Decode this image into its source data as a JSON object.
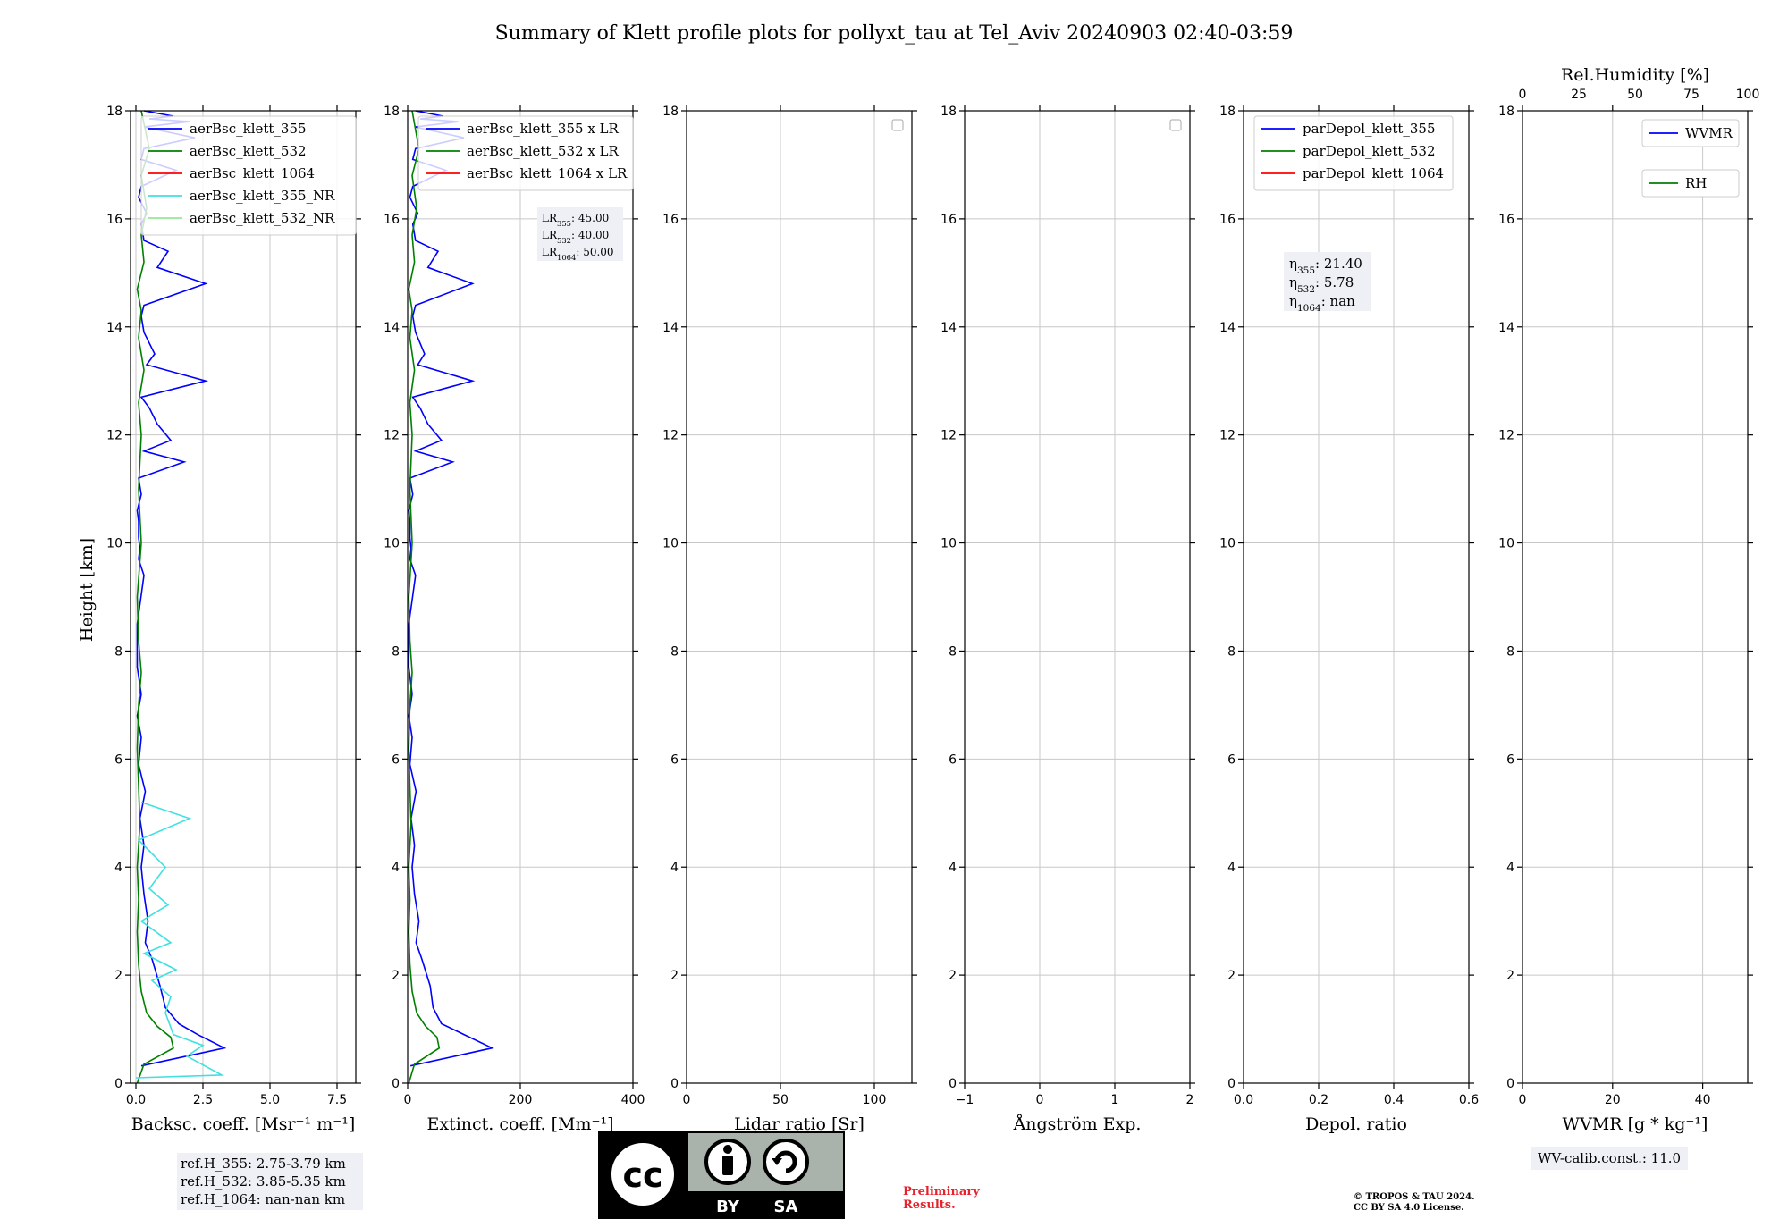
{
  "title": "Summary of Klett profile plots for pollyxt_tau at Tel_Aviv 20240903 02:40-03:59",
  "ylabel": "Height [km]",
  "colors": {
    "c355": "#0000ff",
    "c532": "#008000",
    "c1064": "#ff0000",
    "c355nr": "#40e0e0",
    "c532nr": "#98e69a",
    "grid": "#c8c8c8"
  },
  "chart_data": [
    {
      "id": "backscatter",
      "type": "line",
      "xlabel": "Backsc. coeff. [Msr⁻¹ m⁻¹]",
      "xlim": [
        -0.2,
        8.2
      ],
      "ylim": [
        0,
        18
      ],
      "xticks": [
        "0.0",
        "2.5",
        "5.0",
        "7.5"
      ],
      "xtick_values": [
        0,
        2.5,
        5,
        7.5
      ],
      "yticks": [
        "0",
        "2",
        "4",
        "6",
        "8",
        "10",
        "12",
        "14",
        "16",
        "18"
      ],
      "grid": true,
      "legend": "upper-center",
      "series": [
        {
          "name": "aerBsc_klett_355",
          "color": "#0000ff",
          "x": [
            0.2,
            3.3,
            2.3,
            1.6,
            1.1,
            0.9,
            0.6,
            0.35,
            0.45,
            0.3,
            0.2,
            0.3,
            0.15,
            0.35,
            0.1,
            0.2,
            0.05,
            0.2,
            0.05,
            0.05,
            0.3,
            0.1,
            0.15,
            0.1,
            0.1,
            0.05,
            0.2,
            0.1,
            1.8,
            0.3,
            1.3,
            0.8,
            0.5,
            0.2,
            2.6,
            0.4,
            0.7,
            0.3,
            0.2,
            0.3,
            2.6,
            0.8,
            1.2,
            0.3,
            0.2,
            0.4,
            0.1,
            0.2,
            1.5,
            0.2,
            0.3,
            2.2,
            0.3,
            2.0,
            0.5,
            1.4,
            0.3
          ],
          "y": [
            0.32,
            0.65,
            0.9,
            1.1,
            1.4,
            1.8,
            2.3,
            2.6,
            3.0,
            3.5,
            4.0,
            4.4,
            4.9,
            5.4,
            5.9,
            6.4,
            6.8,
            7.2,
            7.7,
            8.5,
            9.4,
            9.7,
            9.9,
            10.1,
            10.4,
            10.6,
            10.9,
            11.2,
            11.5,
            11.7,
            11.9,
            12.2,
            12.5,
            12.7,
            13.0,
            13.3,
            13.5,
            13.9,
            14.2,
            14.4,
            14.8,
            15.1,
            15.4,
            15.6,
            15.9,
            16.1,
            16.4,
            16.6,
            16.9,
            17.1,
            17.3,
            17.5,
            17.7,
            17.8,
            17.85,
            17.9,
            18.0
          ]
        },
        {
          "name": "aerBsc_klett_532",
          "color": "#008000",
          "x": [
            0.05,
            0.3,
            1.4,
            1.3,
            0.8,
            0.4,
            0.2,
            0.1,
            0.05,
            0.1,
            0.05,
            0.15,
            0.1,
            0.05,
            0.1,
            0.2,
            0.1,
            0.05,
            0.2,
            0.1,
            0.2,
            0.1,
            0.3,
            0.1,
            0.2,
            0.05,
            0.3,
            0.2,
            0.4,
            0.2,
            0.5,
            0.2
          ],
          "y": [
            0.0,
            0.35,
            0.65,
            0.85,
            1.05,
            1.3,
            1.7,
            2.2,
            2.8,
            3.4,
            4.0,
            4.8,
            5.5,
            6.2,
            7.0,
            7.6,
            8.2,
            9.0,
            10.0,
            11.0,
            12.0,
            12.6,
            13.2,
            13.8,
            14.3,
            14.7,
            15.2,
            15.7,
            16.2,
            16.8,
            17.3,
            18.0
          ]
        },
        {
          "name": "aerBsc_klett_1064",
          "color": "#ff0000",
          "x": [],
          "y": []
        },
        {
          "name": "aerBsc_klett_355_NR",
          "color": "#40e0e0",
          "x": [
            0.0,
            3.2,
            1.9,
            2.5,
            1.4,
            1.1,
            1.3,
            0.6,
            1.5,
            0.3,
            1.3,
            0.2,
            1.2,
            0.5,
            1.1,
            0.1,
            2.0,
            0.2
          ],
          "y": [
            0.1,
            0.15,
            0.5,
            0.7,
            0.9,
            1.3,
            1.6,
            1.9,
            2.1,
            2.4,
            2.6,
            3.0,
            3.3,
            3.6,
            4.0,
            4.5,
            4.9,
            5.2
          ]
        },
        {
          "name": "aerBsc_klett_532_NR",
          "color": "#98e69a",
          "x": [],
          "y": []
        }
      ],
      "info_text": [
        "ref.H_355: 2.75-3.79 km",
        "ref.H_532: 3.85-5.35 km",
        "ref.H_1064: nan-nan km"
      ]
    },
    {
      "id": "extinction",
      "type": "line",
      "xlabel": "Extinct. coeff. [Mm⁻¹]",
      "xlim": [
        0,
        400
      ],
      "ylim": [
        0,
        18
      ],
      "xticks": [
        "0",
        "200",
        "400"
      ],
      "xtick_values": [
        0,
        200,
        400
      ],
      "yticks": [
        "0",
        "2",
        "4",
        "6",
        "8",
        "10",
        "12",
        "14",
        "16",
        "18"
      ],
      "grid": true,
      "legend": "upper-center",
      "series": [
        {
          "name": "aerBsc_klett_355 x LR",
          "color": "#0000ff",
          "x": [
            5,
            150,
            100,
            60,
            45,
            40,
            25,
            15,
            20,
            12,
            8,
            12,
            6,
            15,
            4,
            8,
            2,
            8,
            2,
            2,
            14,
            4,
            6,
            4,
            4,
            2,
            9,
            4,
            80,
            14,
            60,
            36,
            22,
            9,
            115,
            18,
            30,
            14,
            9,
            14,
            115,
            36,
            54,
            14,
            9,
            18,
            4,
            9,
            68,
            9,
            14,
            100,
            14,
            90,
            22,
            63,
            14
          ],
          "y": [
            0.32,
            0.65,
            0.9,
            1.1,
            1.4,
            1.8,
            2.3,
            2.6,
            3.0,
            3.5,
            4.0,
            4.4,
            4.9,
            5.4,
            5.9,
            6.4,
            6.8,
            7.2,
            7.7,
            8.5,
            9.4,
            9.7,
            9.9,
            10.1,
            10.4,
            10.6,
            10.9,
            11.2,
            11.5,
            11.7,
            11.9,
            12.2,
            12.5,
            12.7,
            13.0,
            13.3,
            13.5,
            13.9,
            14.2,
            14.4,
            14.8,
            15.1,
            15.4,
            15.6,
            15.9,
            16.1,
            16.4,
            16.6,
            16.9,
            17.1,
            17.3,
            17.5,
            17.7,
            17.8,
            17.85,
            17.9,
            18.0
          ]
        },
        {
          "name": "aerBsc_klett_532 x LR",
          "color": "#008000",
          "x": [
            2,
            12,
            56,
            52,
            32,
            16,
            8,
            4,
            2,
            4,
            2,
            6,
            4,
            2,
            4,
            8,
            4,
            2,
            8,
            4,
            8,
            4,
            12,
            4,
            8,
            2,
            12,
            8,
            16,
            8,
            20,
            8
          ],
          "y": [
            0.0,
            0.35,
            0.65,
            0.85,
            1.05,
            1.3,
            1.7,
            2.2,
            2.8,
            3.4,
            4.0,
            4.8,
            5.5,
            6.2,
            7.0,
            7.6,
            8.2,
            9.0,
            10.0,
            11.0,
            12.0,
            12.6,
            13.2,
            13.8,
            14.3,
            14.7,
            15.2,
            15.7,
            16.2,
            16.8,
            17.3,
            18.0
          ]
        },
        {
          "name": "aerBsc_klett_1064 x LR",
          "color": "#ff0000",
          "x": [],
          "y": []
        }
      ],
      "lr_text": [
        {
          "label": "LR",
          "sub": "355",
          "value": ": 45.00"
        },
        {
          "label": "LR",
          "sub": "532",
          "value": ": 40.00"
        },
        {
          "label": "LR",
          "sub": "1064",
          "value": ": 50.00"
        }
      ]
    },
    {
      "id": "lidar_ratio",
      "type": "line",
      "xlabel": "Lidar ratio [Sr]",
      "xlim": [
        0,
        120
      ],
      "ylim": [
        0,
        18
      ],
      "xticks": [
        "0",
        "50",
        "100"
      ],
      "xtick_values": [
        0,
        50,
        100
      ],
      "yticks": [
        "0",
        "2",
        "4",
        "6",
        "8",
        "10",
        "12",
        "14",
        "16",
        "18"
      ],
      "grid": true,
      "series": []
    },
    {
      "id": "angstrom",
      "type": "line",
      "xlabel": "Ångström Exp.",
      "xlim": [
        -1,
        2
      ],
      "ylim": [
        0,
        18
      ],
      "xticks": [
        "−1",
        "0",
        "1",
        "2"
      ],
      "xtick_values": [
        -1,
        0,
        1,
        2
      ],
      "yticks": [
        "0",
        "2",
        "4",
        "6",
        "8",
        "10",
        "12",
        "14",
        "16",
        "18"
      ],
      "grid": true,
      "series": []
    },
    {
      "id": "depol",
      "type": "line",
      "xlabel": "Depol. ratio",
      "xlim": [
        0,
        0.6
      ],
      "ylim": [
        0,
        18
      ],
      "xticks": [
        "0.0",
        "0.2",
        "0.4",
        "0.6"
      ],
      "xtick_values": [
        0,
        0.2,
        0.4,
        0.6
      ],
      "yticks": [
        "0",
        "2",
        "4",
        "6",
        "8",
        "10",
        "12",
        "14",
        "16",
        "18"
      ],
      "grid": true,
      "legend": "upper-center",
      "series": [
        {
          "name": "parDepol_klett_355",
          "color": "#0000ff",
          "x": [],
          "y": []
        },
        {
          "name": "parDepol_klett_532",
          "color": "#008000",
          "x": [],
          "y": []
        },
        {
          "name": "parDepol_klett_1064",
          "color": "#ff0000",
          "x": [],
          "y": []
        }
      ],
      "eta_text": [
        {
          "label": "η",
          "sub": "355",
          "value": ": 21.40"
        },
        {
          "label": "η",
          "sub": "532",
          "value": ": 5.78"
        },
        {
          "label": "η",
          "sub": "1064",
          "value": ": nan"
        }
      ]
    },
    {
      "id": "wvmr",
      "type": "line",
      "xlabel": "WVMR [g * kg⁻¹]",
      "xlim": [
        0,
        50
      ],
      "ylim": [
        0,
        18
      ],
      "xticks": [
        "0",
        "20",
        "40"
      ],
      "xtick_values": [
        0,
        20,
        40
      ],
      "yticks": [
        "0",
        "2",
        "4",
        "6",
        "8",
        "10",
        "12",
        "14",
        "16",
        "18"
      ],
      "top_axis": {
        "label": "Rel.Humidity [%]",
        "xlim": [
          0,
          100
        ],
        "xticks": [
          "0",
          "25",
          "50",
          "75",
          "100"
        ],
        "xtick_values": [
          0,
          25,
          50,
          75,
          100
        ]
      },
      "grid": true,
      "series": [
        {
          "name": "WVMR",
          "color": "#0000ff",
          "x": [],
          "y": []
        },
        {
          "name": "RH",
          "color": "#008000",
          "x": [],
          "y": []
        }
      ],
      "info_text": [
        "WV-calib.const.: 11.0"
      ]
    }
  ],
  "footer": {
    "preliminary": [
      "Preliminary",
      "Results."
    ],
    "copyright": [
      "© TROPOS & TAU 2024.",
      "CC BY SA 4.0 License."
    ],
    "cc_by": "BY",
    "cc_sa": "SA",
    "cc_text": "cc"
  }
}
